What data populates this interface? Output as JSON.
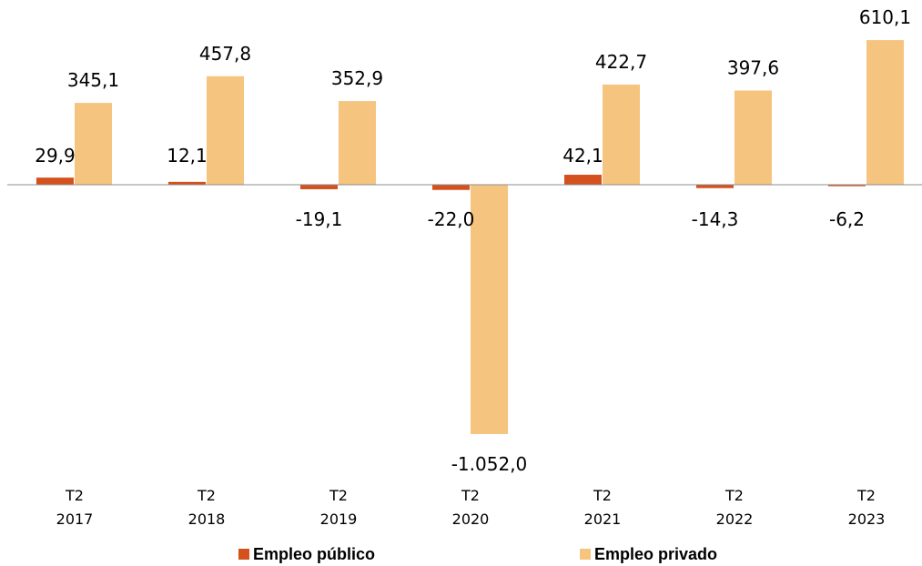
{
  "chart_data": {
    "type": "bar",
    "categories": [
      [
        "T2",
        "2017"
      ],
      [
        "T2",
        "2018"
      ],
      [
        "T2",
        "2019"
      ],
      [
        "T2",
        "2020"
      ],
      [
        "T2",
        "2021"
      ],
      [
        "T2",
        "2022"
      ],
      [
        "T2",
        "2023"
      ]
    ],
    "series": [
      {
        "name": "Empleo público",
        "color": "#d4501c",
        "values": [
          29.9,
          12.1,
          -19.1,
          -22.0,
          42.1,
          -14.3,
          -6.2
        ],
        "labels": [
          "29,9",
          "12,1",
          "-19,1",
          "-22,0",
          "42,1",
          "-14,3",
          "-6,2"
        ]
      },
      {
        "name": "Empleo privado",
        "color": "#f5c47f",
        "values": [
          345.1,
          457.8,
          352.9,
          -1052.0,
          422.7,
          397.6,
          610.1
        ],
        "labels": [
          "345,1",
          "457,8",
          "352,9",
          "-1.052,0",
          "422,7",
          "397,6",
          "610,1"
        ]
      }
    ],
    "legend_position": "bottom",
    "grid": false
  }
}
